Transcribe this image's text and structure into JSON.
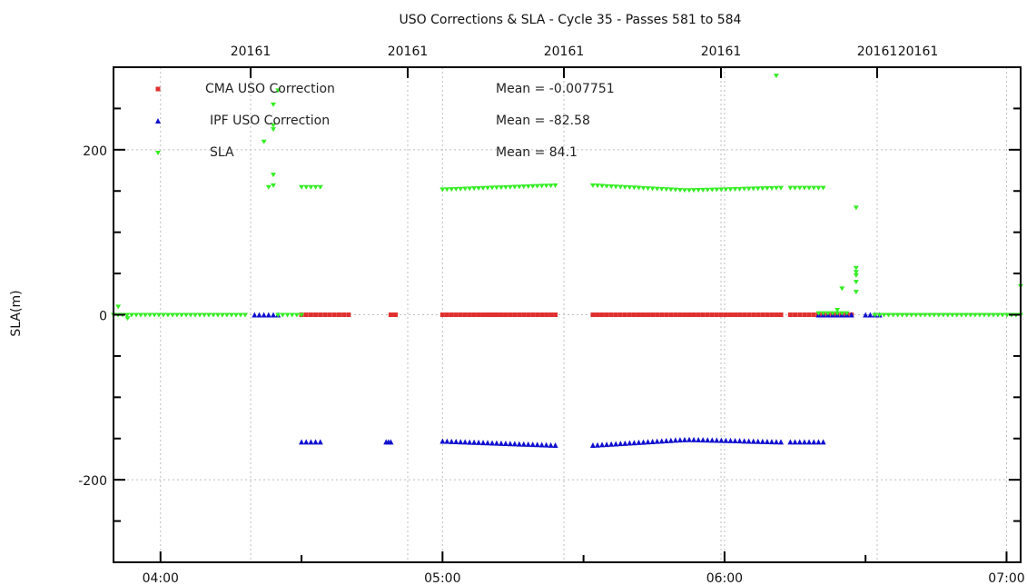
{
  "chart_data": {
    "type": "scatter",
    "title": "USO Corrections & SLA - Cycle 35 - Passes 581 to 584",
    "ylabel": "SLA(m)",
    "xlim": [
      "03:50",
      "07:03"
    ],
    "ylim": [
      -300,
      300
    ],
    "x_ticks_bottom": [
      "04:00",
      "05:00",
      "06:00",
      "07:00"
    ],
    "x_ticks_top": [
      "20161",
      "20161",
      "20161",
      "20161",
      "20161",
      "20161"
    ],
    "y_ticks": [
      -200,
      0,
      200
    ],
    "grid": true,
    "legend_position": "top-left",
    "series": [
      {
        "name": "CMA USO Correction",
        "color": "#e03030",
        "marker": "square",
        "mean_label": "Mean = -0.007751",
        "segments": [
          {
            "x_start": "04:30",
            "x_end": "04:40",
            "value": 0
          },
          {
            "x_start": "04:49",
            "x_end": "04:50",
            "value": 0
          },
          {
            "x_start": "05:00",
            "x_end": "05:24",
            "value": 0
          },
          {
            "x_start": "05:32",
            "x_end": "06:12",
            "value": 0
          },
          {
            "x_start": "06:14",
            "x_end": "06:27",
            "value": 0
          }
        ]
      },
      {
        "name": "IPF USO Correction",
        "color": "#1010d0",
        "marker": "triangle-up",
        "mean_label": "Mean = -82.58",
        "segments": [
          {
            "x_start": "04:20",
            "x_end": "04:25",
            "value": 0
          },
          {
            "x_start": "04:30",
            "x_end": "04:34",
            "value": -154
          },
          {
            "x_start": "04:48",
            "x_end": "04:49",
            "value": -154
          },
          {
            "x_start": "05:00",
            "x_end": "05:24",
            "value_start": -153,
            "value_end": -158
          },
          {
            "x_start": "05:32",
            "x_end": "06:12",
            "value_start": -158,
            "value_mid": -151,
            "value_end": -154
          },
          {
            "x_start": "06:14",
            "x_end": "06:21",
            "value": -154
          },
          {
            "x_start": "06:20",
            "x_end": "06:27",
            "value": 0
          },
          {
            "x_start": "06:30",
            "x_end": "06:33",
            "value": 0
          }
        ]
      },
      {
        "name": "SLA",
        "color": "#33ee22",
        "marker": "triangle-down",
        "mean_label": "Mean = 84.1",
        "segments": [
          {
            "x_start": "03:50",
            "x_end": "04:18",
            "value": 0
          },
          {
            "x_start": "04:25",
            "x_end": "04:30",
            "value": 0
          },
          {
            "x_start": "04:30",
            "x_end": "04:34",
            "value": 155
          },
          {
            "x_start": "05:00",
            "x_end": "05:24",
            "value_start": 152,
            "value_end": 157
          },
          {
            "x_start": "05:32",
            "x_end": "06:12",
            "value_start": 157,
            "value_mid": 151,
            "value_end": 154
          },
          {
            "x_start": "06:14",
            "x_end": "06:21",
            "value": 154
          },
          {
            "x_start": "06:20",
            "x_end": "06:26",
            "value": 2
          },
          {
            "x_start": "06:32",
            "x_end": "07:03",
            "value": 0
          }
        ],
        "points": [
          {
            "x": "03:51",
            "y": 10
          },
          {
            "x": "03:53",
            "y": -4
          },
          {
            "x": "04:22",
            "y": 210
          },
          {
            "x": "04:23",
            "y": 155
          },
          {
            "x": "04:24",
            "y": 157
          },
          {
            "x": "04:24",
            "y": 170
          },
          {
            "x": "04:24",
            "y": 225
          },
          {
            "x": "04:24",
            "y": 230
          },
          {
            "x": "04:24",
            "y": 255
          },
          {
            "x": "04:25",
            "y": 272
          },
          {
            "x": "06:11",
            "y": 290
          },
          {
            "x": "06:24",
            "y": 6
          },
          {
            "x": "06:25",
            "y": 32
          },
          {
            "x": "06:28",
            "y": 130
          },
          {
            "x": "06:28",
            "y": 28
          },
          {
            "x": "06:28",
            "y": 40
          },
          {
            "x": "06:28",
            "y": 48
          },
          {
            "x": "06:28",
            "y": 52
          },
          {
            "x": "06:28",
            "y": 57
          },
          {
            "x": "07:03",
            "y": 35
          }
        ]
      }
    ]
  }
}
